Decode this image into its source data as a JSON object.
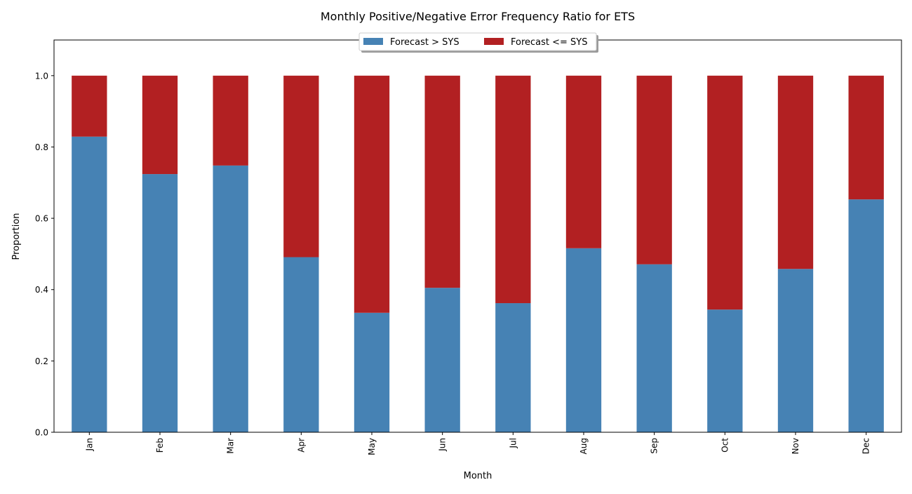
{
  "chart_data": {
    "type": "bar",
    "stacked": true,
    "title": "Monthly Positive/Negative Error Frequency Ratio for ETS",
    "xlabel": "Month",
    "ylabel": "Proportion",
    "ylim": [
      0,
      1.1
    ],
    "yticks": [
      "0.0",
      "0.2",
      "0.4",
      "0.6",
      "0.8",
      "1.0"
    ],
    "grid": false,
    "legend_position": "top-center",
    "categories": [
      "Jan",
      "Feb",
      "Mar",
      "Apr",
      "May",
      "Jun",
      "Jul",
      "Aug",
      "Sep",
      "Oct",
      "Nov",
      "Dec"
    ],
    "series": [
      {
        "name": "Forecast > SYS",
        "color": "#4682b4",
        "values": [
          0.829,
          0.724,
          0.748,
          0.491,
          0.335,
          0.405,
          0.362,
          0.516,
          0.471,
          0.344,
          0.458,
          0.653
        ]
      },
      {
        "name": "Forecast <= SYS",
        "color": "#b22022",
        "values": [
          0.171,
          0.276,
          0.252,
          0.509,
          0.665,
          0.595,
          0.638,
          0.484,
          0.529,
          0.656,
          0.542,
          0.347
        ]
      }
    ]
  }
}
